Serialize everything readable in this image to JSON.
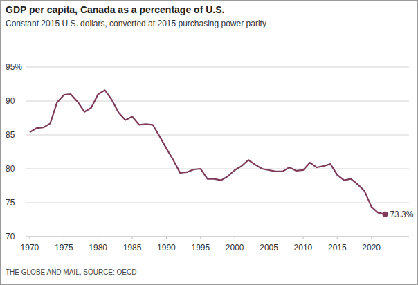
{
  "chart_data": {
    "type": "line",
    "title": "GDP per capita, Canada as a percentage of U.S.",
    "subtitle": "Constant 2015 U.S. dollars, converted at 2015 purchasing power parity",
    "source": "THE GLOBE AND MAIL, SOURCE: OECD",
    "color": "#7d3a5a",
    "grid": true,
    "x": [
      1970,
      1971,
      1972,
      1973,
      1974,
      1975,
      1976,
      1977,
      1978,
      1979,
      1980,
      1981,
      1982,
      1983,
      1984,
      1985,
      1986,
      1987,
      1988,
      1989,
      1990,
      1991,
      1992,
      1993,
      1994,
      1995,
      1996,
      1997,
      1998,
      1999,
      2000,
      2001,
      2002,
      2003,
      2004,
      2005,
      2006,
      2007,
      2008,
      2009,
      2010,
      2011,
      2012,
      2013,
      2014,
      2015,
      2016,
      2017,
      2018,
      2019,
      2020,
      2021,
      2022
    ],
    "values": [
      85.4,
      86.0,
      86.1,
      86.7,
      89.8,
      90.9,
      91.0,
      89.9,
      88.4,
      89.0,
      91.0,
      91.6,
      90.2,
      88.3,
      87.2,
      87.7,
      86.5,
      86.6,
      86.5,
      84.8,
      83.0,
      81.3,
      79.4,
      79.5,
      79.9,
      80.0,
      78.5,
      78.5,
      78.3,
      78.9,
      79.8,
      80.4,
      81.3,
      80.6,
      80.0,
      79.8,
      79.6,
      79.6,
      80.2,
      79.7,
      79.8,
      80.9,
      80.2,
      80.4,
      80.7,
      79.1,
      78.3,
      78.5,
      77.7,
      76.7,
      74.4,
      73.5,
      73.3
    ],
    "xlim": [
      1969.5,
      2025.5
    ],
    "xticks": [
      1970,
      1975,
      1980,
      1985,
      1990,
      1995,
      2000,
      2005,
      2010,
      2015,
      2020
    ],
    "ylim": [
      70,
      95
    ],
    "yticks": [
      70,
      75,
      80,
      85,
      90,
      {
        "value": 95,
        "label": "95%"
      }
    ],
    "annotations": [
      {
        "x": 2022,
        "y": 73.3,
        "label": "73.3%"
      }
    ]
  }
}
